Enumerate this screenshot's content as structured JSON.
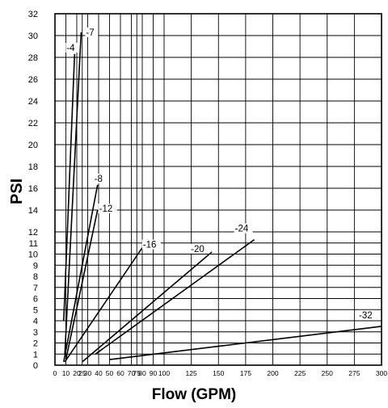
{
  "chart_data": {
    "type": "line",
    "xlabel": "Flow (GPM)",
    "ylabel": "PSI",
    "xlim": [
      0,
      300
    ],
    "ylim": [
      0,
      32
    ],
    "grid": true,
    "x_ticks": [
      0,
      10,
      20,
      25,
      30,
      40,
      50,
      60,
      70,
      75,
      80,
      90,
      100,
      125,
      150,
      175,
      200,
      225,
      250,
      275,
      300
    ],
    "y_ticks": [
      0,
      1,
      2,
      3,
      4,
      5,
      6,
      7,
      8,
      9,
      10,
      11,
      12,
      14,
      16,
      18,
      20,
      22,
      24,
      26,
      28,
      30,
      32
    ],
    "series": [
      {
        "name": "-4",
        "points": [
          [
            8,
            4
          ],
          [
            18,
            28.3
          ]
        ]
      },
      {
        "name": "-7",
        "points": [
          [
            9,
            1
          ],
          [
            24,
            30.3
          ]
        ]
      },
      {
        "name": "-8",
        "points": [
          [
            8,
            0.3
          ],
          [
            39,
            16.3
          ]
        ]
      },
      {
        "name": "-12",
        "points": [
          [
            10,
            0.5
          ],
          [
            39,
            14
          ]
        ]
      },
      {
        "name": "-16",
        "points": [
          [
            9,
            0.3
          ],
          [
            85,
            11.3
          ]
        ]
      },
      {
        "name": "-20",
        "points": [
          [
            25,
            0.3
          ],
          [
            144,
            10.2
          ]
        ]
      },
      {
        "name": "-24",
        "points": [
          [
            37,
            1
          ],
          [
            183,
            11.3
          ]
        ]
      },
      {
        "name": "-32",
        "points": [
          [
            50,
            0.5
          ],
          [
            300,
            3.5
          ]
        ]
      }
    ]
  }
}
